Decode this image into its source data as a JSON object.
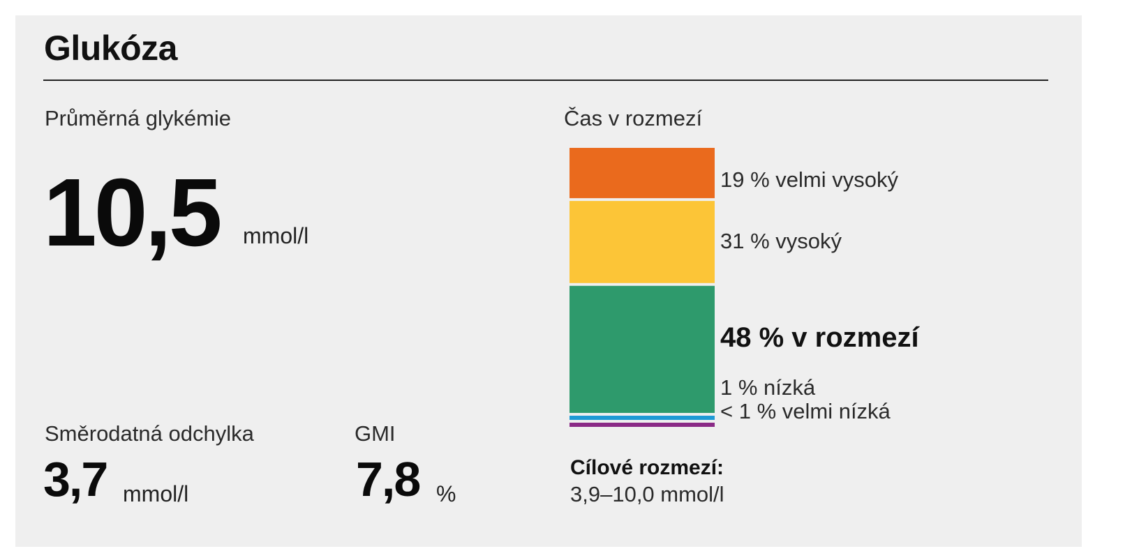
{
  "title": "Glukóza",
  "average": {
    "label": "Průměrná glykémie",
    "value": "10,5",
    "unit": "mmol/l"
  },
  "std_dev": {
    "label": "Směrodatná odchylka",
    "value": "3,7",
    "unit": "mmol/l"
  },
  "gmi": {
    "label": "GMI",
    "value": "7,8",
    "unit": "%"
  },
  "time_in_range": {
    "label": "Čas v rozmezí",
    "segments": [
      {
        "label": "19 % velmi vysoký",
        "percent": 19,
        "color": "#ea6a1d"
      },
      {
        "label": "31 % vysoký",
        "percent": 31,
        "color": "#fcc537"
      },
      {
        "label": "48 % v rozmezí",
        "percent": 48,
        "color": "#2e9a6c"
      },
      {
        "label": "1 % nízká",
        "percent": 1,
        "color": "#1f9ad6"
      },
      {
        "label": "< 1 % velmi nízká",
        "percent": 1,
        "color": "#8a2a86"
      }
    ],
    "target_title": "Cílové rozmezí:",
    "target_value": "3,9–10,0 mmol/l"
  },
  "chart_data": {
    "type": "bar",
    "title": "Čas v rozmezí",
    "stacked": true,
    "categories": [
      "velmi vysoký",
      "vysoký",
      "v rozmezí",
      "nízká",
      "velmi nízká"
    ],
    "values": [
      19,
      31,
      48,
      1,
      1
    ],
    "value_labels": [
      "19 %",
      "31 %",
      "48 %",
      "1 %",
      "< 1 %"
    ],
    "colors": [
      "#ea6a1d",
      "#fcc537",
      "#2e9a6c",
      "#1f9ad6",
      "#8a2a86"
    ]
  }
}
